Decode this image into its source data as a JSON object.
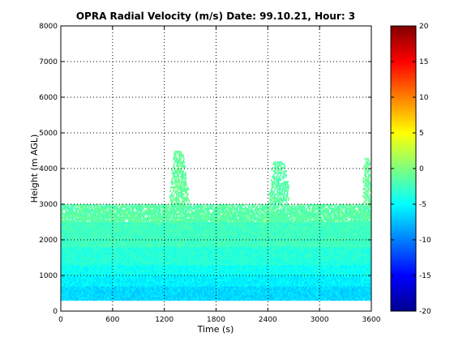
{
  "chart_data": {
    "type": "heatmap",
    "title": "OPRA Radial Velocity (m/s)  Date: 99.10.21, Hour: 3",
    "xlabel": "Time (s)",
    "ylabel": "Height (m AGL)",
    "xlim": [
      0,
      3600
    ],
    "ylim": [
      0,
      8000
    ],
    "x_ticks": [
      "0",
      "600",
      "1200",
      "1800",
      "2400",
      "3000",
      "3600"
    ],
    "y_ticks": [
      "0",
      "1000",
      "2000",
      "3000",
      "4000",
      "5000",
      "6000",
      "7000",
      "8000"
    ],
    "grid": true,
    "colorbar": {
      "colormap": "jet",
      "clim": [
        -20,
        20
      ],
      "ticks": [
        "20",
        "15",
        "10",
        "5",
        "0",
        "-5",
        "-10",
        "-15",
        "-20"
      ]
    },
    "layers": [
      {
        "height_range": [
          300,
          700
        ],
        "velocity": -6.5
      },
      {
        "height_range": [
          700,
          1000
        ],
        "velocity": -5.5
      },
      {
        "height_range": [
          1000,
          1300
        ],
        "velocity": -4.5
      },
      {
        "height_range": [
          1300,
          1800
        ],
        "velocity": -3.5
      },
      {
        "height_range": [
          1800,
          2500
        ],
        "velocity": -2.5
      },
      {
        "height_range": [
          2500,
          3000
        ],
        "velocity": -1.5
      }
    ],
    "plumes": [
      {
        "time_range": [
          1250,
          1480
        ],
        "height_range": [
          3000,
          4500
        ],
        "velocity": -1
      },
      {
        "time_range": [
          2400,
          2650
        ],
        "height_range": [
          3000,
          4200
        ],
        "velocity": -1.5
      },
      {
        "time_range": [
          3500,
          3600
        ],
        "height_range": [
          3000,
          4300
        ],
        "velocity": -1
      }
    ]
  }
}
